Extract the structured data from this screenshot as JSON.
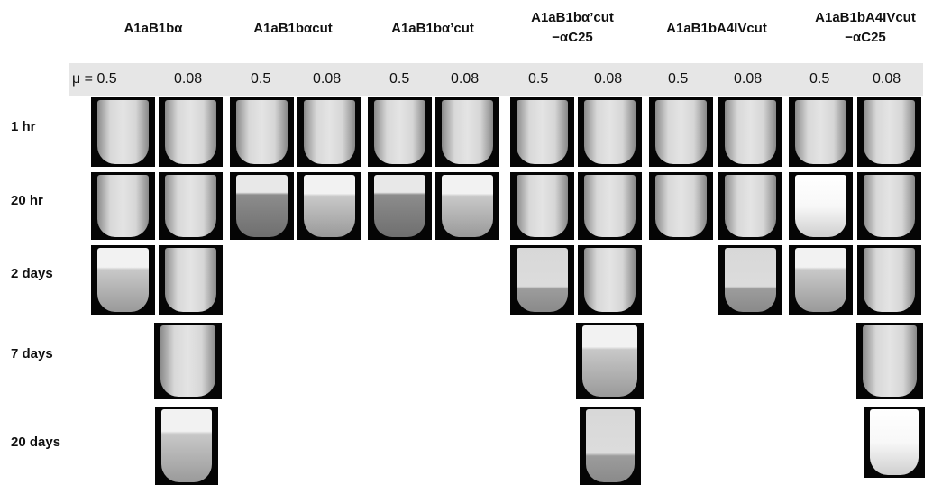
{
  "columns": [
    {
      "label_line1": "A1aB1bα",
      "label_line2": ""
    },
    {
      "label_line1": "A1aB1bαcut",
      "label_line2": ""
    },
    {
      "label_line1": "A1aB1bα’cut",
      "label_line2": ""
    },
    {
      "label_line1": "A1aB1bα’cut",
      "label_line2": "−αC25"
    },
    {
      "label_line1": "A1aB1bA4IVcut",
      "label_line2": ""
    },
    {
      "label_line1": "A1aB1bA4IVcut",
      "label_line2": "−αC25"
    }
  ],
  "mu_labels": [
    "μ = 0.5",
    "0.08",
    "0.5",
    "0.08",
    "0.5",
    "0.08",
    "0.5",
    "0.08",
    "0.5",
    "0.08",
    "0.5",
    "0.08"
  ],
  "rows": [
    "1 hr",
    "20 hr",
    "2 days",
    "7 days",
    "20 days"
  ]
}
